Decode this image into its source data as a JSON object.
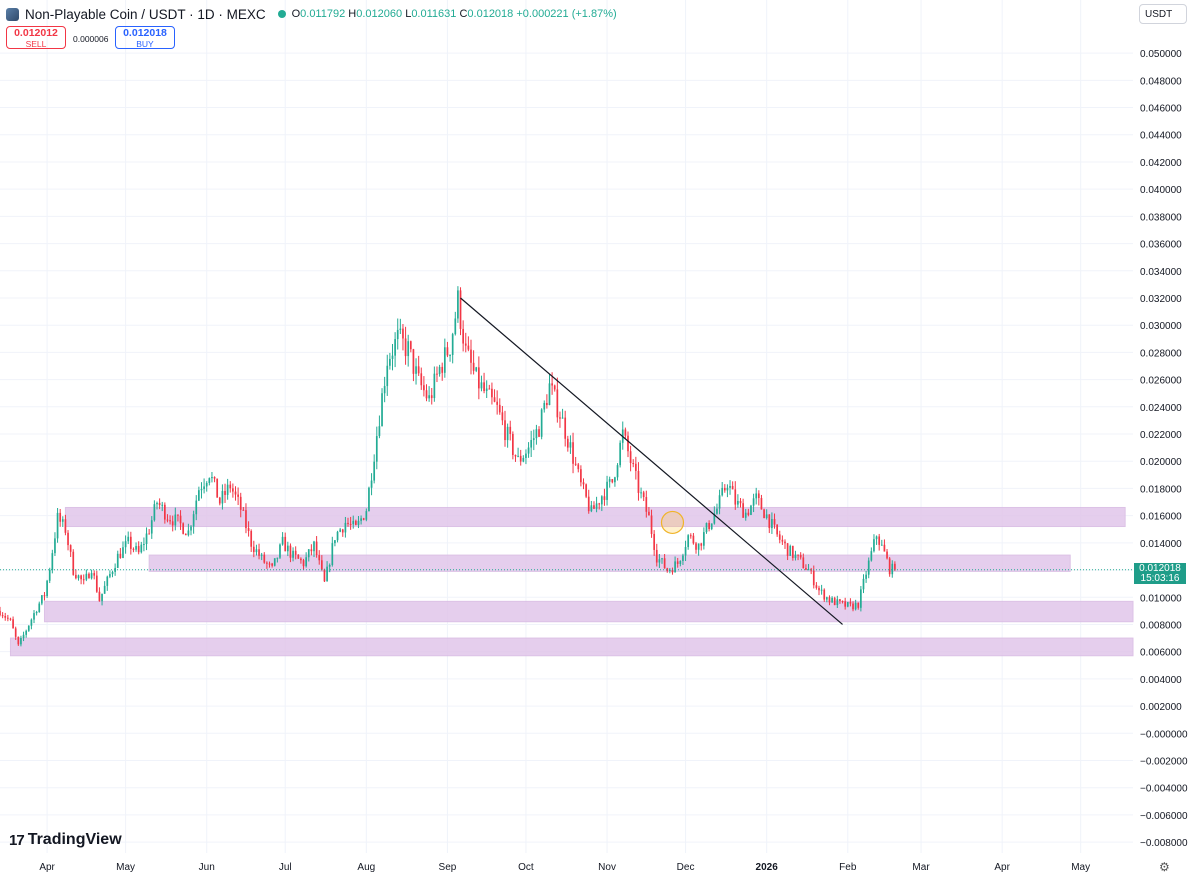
{
  "header": {
    "title": "Non-Playable Coin / USDT · 1D · MEXC",
    "open_label": "O",
    "open": "0.011792",
    "high_label": "H",
    "high": "0.012060",
    "low_label": "L",
    "low": "0.011631",
    "close_label": "C",
    "close": "0.012018",
    "change": "+0.000221 (+1.87%)"
  },
  "trade": {
    "sell_price": "0.012012",
    "sell_label": "SELL",
    "spread": "0.000006",
    "buy_price": "0.012018",
    "buy_label": "BUY"
  },
  "currency": "USDT",
  "last_price": {
    "value": "0.012018",
    "countdown": "15:03:16"
  },
  "branding": "TradingView",
  "colors": {
    "up": "#22ab94",
    "down": "#f23645",
    "zone": "#e1c6ea",
    "zone_border": "#d7b8e2"
  },
  "chart_data": {
    "type": "candlestick",
    "y_range": [
      -0.0088,
      0.0517
    ],
    "y_ticks": [
      "0.050000",
      "0.048000",
      "0.046000",
      "0.044000",
      "0.042000",
      "0.040000",
      "0.038000",
      "0.036000",
      "0.034000",
      "0.032000",
      "0.030000",
      "0.028000",
      "0.026000",
      "0.024000",
      "0.022000",
      "0.020000",
      "0.018000",
      "0.016000",
      "0.014000",
      "0.012000",
      "0.010000",
      "0.008000",
      "0.006000",
      "0.004000",
      "0.002000",
      "−0.000000",
      "−0.002000",
      "−0.004000",
      "−0.006000",
      "−0.008000"
    ],
    "x_range": [
      "2025-03-14",
      "2026-05-21"
    ],
    "x_ticks": [
      {
        "date": "2025-04-01",
        "label": "Apr",
        "bold": false
      },
      {
        "date": "2025-05-01",
        "label": "May",
        "bold": false
      },
      {
        "date": "2025-06-01",
        "label": "Jun",
        "bold": false
      },
      {
        "date": "2025-07-01",
        "label": "Jul",
        "bold": false
      },
      {
        "date": "2025-08-01",
        "label": "Aug",
        "bold": false
      },
      {
        "date": "2025-09-01",
        "label": "Sep",
        "bold": false
      },
      {
        "date": "2025-10-01",
        "label": "Oct",
        "bold": false
      },
      {
        "date": "2025-11-01",
        "label": "Nov",
        "bold": false
      },
      {
        "date": "2025-12-01",
        "label": "Dec",
        "bold": false
      },
      {
        "date": "2026-01-01",
        "label": "2026",
        "bold": true
      },
      {
        "date": "2026-02-01",
        "label": "Feb",
        "bold": false
      },
      {
        "date": "2026-03-01",
        "label": "Mar",
        "bold": false
      },
      {
        "date": "2026-04-01",
        "label": "Apr",
        "bold": false
      },
      {
        "date": "2026-05-01",
        "label": "May",
        "bold": false
      }
    ],
    "close_path": [
      [
        "2025-03-14",
        0.009
      ],
      [
        "2025-03-18",
        0.0082
      ],
      [
        "2025-03-21",
        0.0064
      ],
      [
        "2025-03-24",
        0.0076
      ],
      [
        "2025-03-28",
        0.0092
      ],
      [
        "2025-03-31",
        0.0102
      ],
      [
        "2025-04-02",
        0.0122
      ],
      [
        "2025-04-05",
        0.0158
      ],
      [
        "2025-04-08",
        0.015
      ],
      [
        "2025-04-11",
        0.012
      ],
      [
        "2025-04-15",
        0.011
      ],
      [
        "2025-04-18",
        0.0122
      ],
      [
        "2025-04-21",
        0.0098
      ],
      [
        "2025-04-24",
        0.0112
      ],
      [
        "2025-04-28",
        0.013
      ],
      [
        "2025-05-02",
        0.014
      ],
      [
        "2025-05-06",
        0.0132
      ],
      [
        "2025-05-10",
        0.015
      ],
      [
        "2025-05-13",
        0.017
      ],
      [
        "2025-05-17",
        0.016
      ],
      [
        "2025-05-21",
        0.0155
      ],
      [
        "2025-05-25",
        0.0148
      ],
      [
        "2025-05-29",
        0.018
      ],
      [
        "2025-06-02",
        0.0192
      ],
      [
        "2025-06-06",
        0.017
      ],
      [
        "2025-06-10",
        0.0182
      ],
      [
        "2025-06-14",
        0.0165
      ],
      [
        "2025-06-18",
        0.014
      ],
      [
        "2025-06-22",
        0.0128
      ],
      [
        "2025-06-26",
        0.012
      ],
      [
        "2025-06-30",
        0.014
      ],
      [
        "2025-07-04",
        0.013
      ],
      [
        "2025-07-08",
        0.0125
      ],
      [
        "2025-07-12",
        0.0138
      ],
      [
        "2025-07-16",
        0.011
      ],
      [
        "2025-07-20",
        0.0145
      ],
      [
        "2025-07-24",
        0.0155
      ],
      [
        "2025-07-28",
        0.015
      ],
      [
        "2025-08-01",
        0.0165
      ],
      [
        "2025-08-05",
        0.022
      ],
      [
        "2025-08-09",
        0.0275
      ],
      [
        "2025-08-13",
        0.029
      ],
      [
        "2025-08-17",
        0.0282
      ],
      [
        "2025-08-21",
        0.0258
      ],
      [
        "2025-08-25",
        0.0245
      ],
      [
        "2025-08-29",
        0.0268
      ],
      [
        "2025-09-02",
        0.0285
      ],
      [
        "2025-09-05",
        0.0318
      ],
      [
        "2025-09-08",
        0.028
      ],
      [
        "2025-09-12",
        0.026
      ],
      [
        "2025-09-16",
        0.0248
      ],
      [
        "2025-09-20",
        0.0238
      ],
      [
        "2025-09-24",
        0.0218
      ],
      [
        "2025-09-28",
        0.02
      ],
      [
        "2025-10-02",
        0.021
      ],
      [
        "2025-10-06",
        0.0225
      ],
      [
        "2025-10-10",
        0.0255
      ],
      [
        "2025-10-14",
        0.0235
      ],
      [
        "2025-10-18",
        0.021
      ],
      [
        "2025-10-22",
        0.0182
      ],
      [
        "2025-10-26",
        0.0162
      ],
      [
        "2025-10-30",
        0.0175
      ],
      [
        "2025-11-03",
        0.0185
      ],
      [
        "2025-11-07",
        0.022
      ],
      [
        "2025-11-10",
        0.02
      ],
      [
        "2025-11-13",
        0.018
      ],
      [
        "2025-11-17",
        0.0158
      ],
      [
        "2025-11-20",
        0.013
      ],
      [
        "2025-11-24",
        0.012
      ],
      [
        "2025-11-28",
        0.0125
      ],
      [
        "2025-12-02",
        0.0145
      ],
      [
        "2025-12-06",
        0.0138
      ],
      [
        "2025-12-09",
        0.015
      ],
      [
        "2025-12-13",
        0.0165
      ],
      [
        "2025-12-17",
        0.0185
      ],
      [
        "2025-12-20",
        0.017
      ],
      [
        "2025-12-24",
        0.0162
      ],
      [
        "2025-12-28",
        0.0172
      ],
      [
        "2026-01-01",
        0.016
      ],
      [
        "2026-01-05",
        0.0145
      ],
      [
        "2026-01-09",
        0.0135
      ],
      [
        "2026-01-13",
        0.0128
      ],
      [
        "2026-01-17",
        0.012
      ],
      [
        "2026-01-21",
        0.0105
      ],
      [
        "2026-01-25",
        0.0098
      ],
      [
        "2026-01-29",
        0.0095
      ],
      [
        "2026-02-02",
        0.0093
      ],
      [
        "2026-02-05",
        0.0095
      ],
      [
        "2026-02-08",
        0.0118
      ],
      [
        "2026-02-12",
        0.0146
      ],
      [
        "2026-02-15",
        0.0132
      ],
      [
        "2026-02-17",
        0.0121
      ],
      [
        "2026-02-19",
        0.012
      ]
    ],
    "zones": [
      {
        "from": "2025-04-08",
        "to": "2026-05-18",
        "low": 0.0152,
        "high": 0.0166
      },
      {
        "from": "2025-05-10",
        "to": "2026-04-27",
        "low": 0.0119,
        "high": 0.0131
      },
      {
        "from": "2025-03-31",
        "to": "2026-05-21",
        "low": 0.0082,
        "high": 0.0097
      },
      {
        "from": "2025-03-18",
        "to": "2026-05-21",
        "low": 0.0057,
        "high": 0.007
      }
    ],
    "trendline": {
      "from": [
        "2025-09-06",
        0.032
      ],
      "to": [
        "2026-01-30",
        0.008
      ]
    },
    "marker": {
      "date": "2025-11-26",
      "value": 0.0155
    },
    "last_price": 0.012018
  }
}
